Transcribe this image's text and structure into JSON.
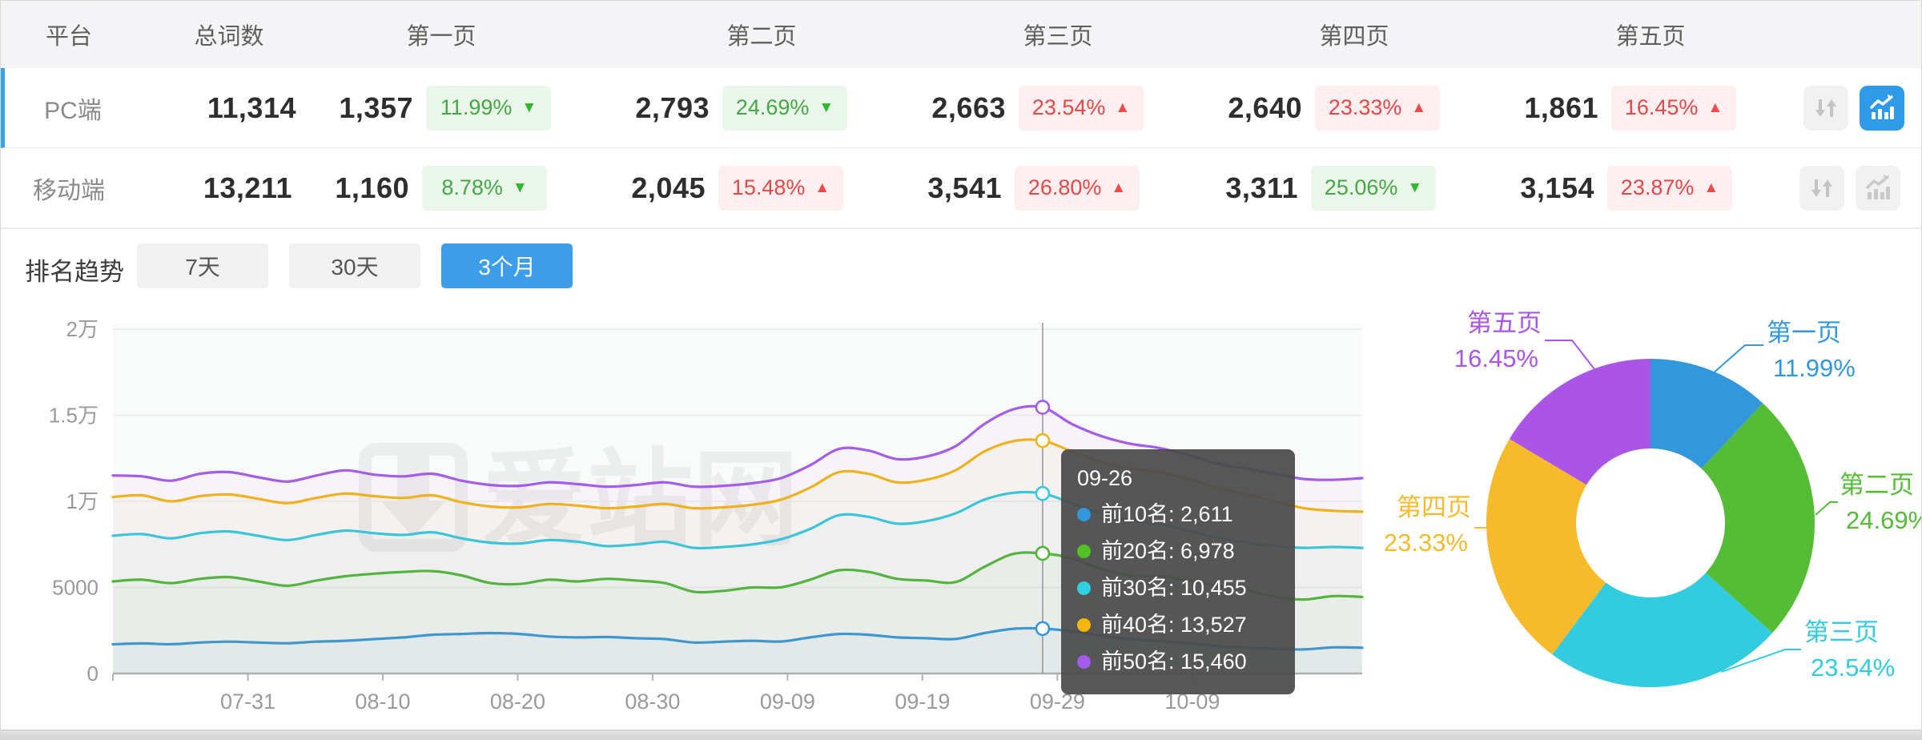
{
  "table": {
    "headers": {
      "platform": "平台",
      "total": "总词数",
      "pages": [
        "第一页",
        "第二页",
        "第三页",
        "第四页",
        "第五页"
      ]
    },
    "rows": [
      {
        "platform": "PC端",
        "total": "11,314",
        "active": true,
        "icons": {
          "sort_active": false,
          "chart_active": true
        },
        "pages": [
          {
            "count": "1,357",
            "pct": "11.99%",
            "dir": "down",
            "tone": "green"
          },
          {
            "count": "2,793",
            "pct": "24.69%",
            "dir": "down",
            "tone": "green"
          },
          {
            "count": "2,663",
            "pct": "23.54%",
            "dir": "up",
            "tone": "red"
          },
          {
            "count": "2,640",
            "pct": "23.33%",
            "dir": "up",
            "tone": "red"
          },
          {
            "count": "1,861",
            "pct": "16.45%",
            "dir": "up",
            "tone": "red"
          }
        ]
      },
      {
        "platform": "移动端",
        "total": "13,211",
        "active": false,
        "icons": {
          "sort_active": false,
          "chart_active": false
        },
        "pages": [
          {
            "count": "1,160",
            "pct": "8.78%",
            "dir": "down",
            "tone": "green"
          },
          {
            "count": "2,045",
            "pct": "15.48%",
            "dir": "up",
            "tone": "red"
          },
          {
            "count": "3,541",
            "pct": "26.80%",
            "dir": "up",
            "tone": "red"
          },
          {
            "count": "3,311",
            "pct": "25.06%",
            "dir": "down",
            "tone": "green"
          },
          {
            "count": "3,154",
            "pct": "23.87%",
            "dir": "up",
            "tone": "red"
          }
        ]
      }
    ]
  },
  "trend": {
    "title": "排名趋势",
    "tabs": [
      {
        "label": "7天",
        "active": false
      },
      {
        "label": "30天",
        "active": false
      },
      {
        "label": "3个月",
        "active": true
      }
    ]
  },
  "watermark": "爱站网",
  "tooltip": {
    "date": "09-26",
    "items": [
      {
        "label": "前10名",
        "value": "2,611",
        "color": "#3398db"
      },
      {
        "label": "前20名",
        "value": "6,978",
        "color": "#52c125"
      },
      {
        "label": "前30名",
        "value": "10,455",
        "color": "#2fd0e2"
      },
      {
        "label": "前40名",
        "value": "13,527",
        "color": "#f5b70d"
      },
      {
        "label": "前50名",
        "value": "15,460",
        "color": "#a55ce8"
      }
    ]
  },
  "chart_data": [
    {
      "type": "line",
      "title": "排名趋势 (3个月)",
      "x_ticks": [
        "07-31",
        "08-10",
        "08-20",
        "08-30",
        "09-09",
        "09-19",
        "09-29",
        "10-09"
      ],
      "y_ticks": [
        "0",
        "5000",
        "1万",
        "1.5万",
        "2万"
      ],
      "ylim": [
        0,
        20000
      ],
      "grid": true,
      "crosshair": {
        "date": "09-26",
        "index": 32
      },
      "series": [
        {
          "name": "前10名",
          "color": "#3398db",
          "values": [
            1700,
            1750,
            1700,
            1800,
            1850,
            1800,
            1760,
            1850,
            1900,
            2000,
            2100,
            2250,
            2300,
            2350,
            2300,
            2150,
            2100,
            2120,
            2050,
            2000,
            1800,
            1850,
            1900,
            1860,
            2100,
            2300,
            2250,
            2100,
            2050,
            2010,
            2350,
            2600,
            2611,
            2450,
            2200,
            2000,
            1900,
            1750,
            1600,
            1500,
            1450,
            1400,
            1520,
            1500
          ]
        },
        {
          "name": "前20名",
          "color": "#4cb936",
          "values": [
            5350,
            5450,
            5250,
            5500,
            5600,
            5350,
            5100,
            5400,
            5650,
            5800,
            5900,
            5950,
            5700,
            5250,
            5200,
            5450,
            5350,
            5500,
            5400,
            5250,
            4750,
            4800,
            5000,
            5010,
            5450,
            6000,
            5900,
            5500,
            5400,
            5310,
            6200,
            6950,
            6978,
            6700,
            6100,
            5700,
            5650,
            5400,
            5100,
            4850,
            4450,
            4300,
            4500,
            4450
          ]
        },
        {
          "name": "前30名",
          "color": "#32cbdf",
          "values": [
            8000,
            8100,
            7850,
            8150,
            8250,
            8000,
            7750,
            8050,
            8300,
            8150,
            8050,
            8200,
            7850,
            7600,
            7550,
            7750,
            7650,
            7400,
            7500,
            7650,
            7300,
            7350,
            7500,
            7800,
            8400,
            9200,
            9100,
            8700,
            8850,
            9300,
            10100,
            10500,
            10455,
            9900,
            9300,
            8900,
            8700,
            8300,
            7900,
            7600,
            7400,
            7300,
            7350,
            7300
          ]
        },
        {
          "name": "前40名",
          "color": "#f2b517",
          "values": [
            10250,
            10350,
            10000,
            10300,
            10400,
            10150,
            9900,
            10200,
            10450,
            10300,
            10200,
            10350,
            9950,
            9700,
            9650,
            9850,
            9750,
            9600,
            9700,
            9850,
            9600,
            9650,
            9800,
            10100,
            10800,
            11700,
            11600,
            11100,
            11250,
            11800,
            12900,
            13500,
            13527,
            12900,
            12300,
            11900,
            11700,
            11300,
            10800,
            10400,
            10000,
            9600,
            9450,
            9400
          ]
        },
        {
          "name": "前50名",
          "color": "#a55ce8",
          "values": [
            11500,
            11450,
            11200,
            11600,
            11700,
            11400,
            11150,
            11500,
            11800,
            11550,
            11450,
            11600,
            11200,
            10950,
            10900,
            11100,
            11000,
            10850,
            10950,
            11100,
            10850,
            10900,
            11050,
            11350,
            12100,
            13050,
            12950,
            12450,
            12600,
            13200,
            14500,
            15350,
            15460,
            14500,
            13800,
            13350,
            13100,
            12700,
            12200,
            11900,
            11600,
            11300,
            11250,
            11350
          ]
        }
      ]
    },
    {
      "type": "pie",
      "donut": true,
      "slices": [
        {
          "label": "第一页",
          "pct": 11.99,
          "color": "#3398db"
        },
        {
          "label": "第二页",
          "pct": 24.69,
          "color": "#54bd35"
        },
        {
          "label": "第三页",
          "pct": 23.54,
          "color": "#32cbdf"
        },
        {
          "label": "第四页",
          "pct": 23.33,
          "color": "#f7ba2a"
        },
        {
          "label": "第五页",
          "pct": 16.45,
          "color": "#ab55e8"
        }
      ]
    }
  ]
}
